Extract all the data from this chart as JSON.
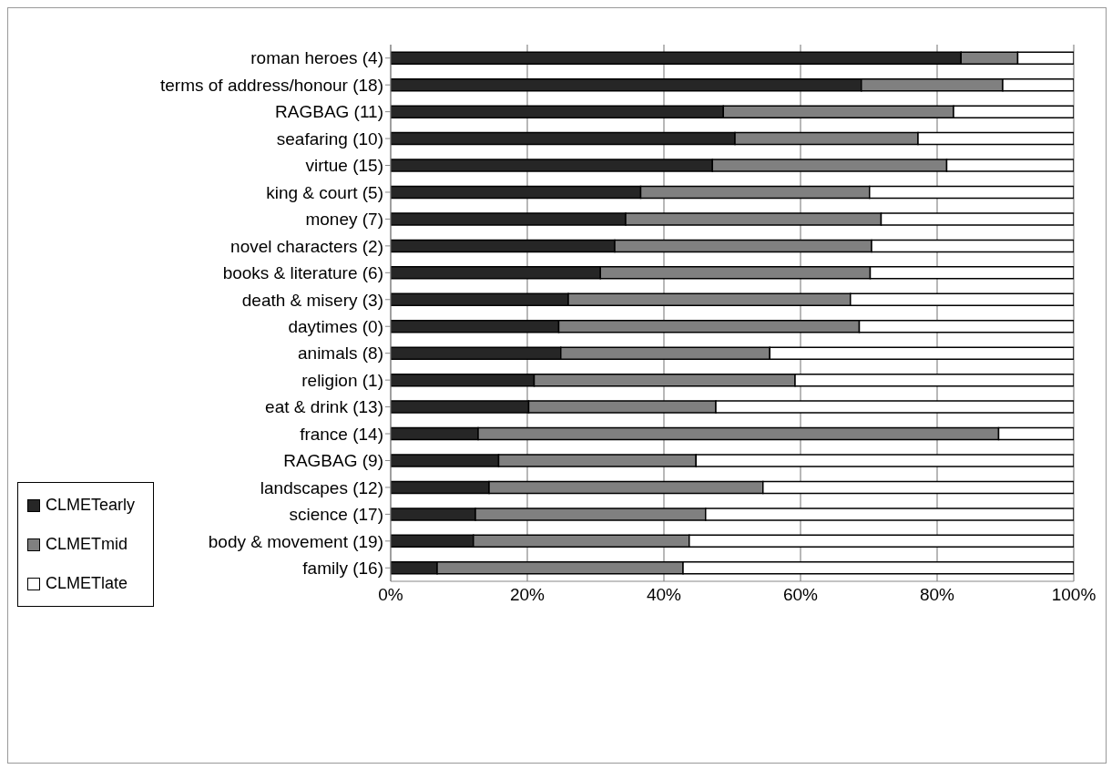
{
  "chart_data": {
    "type": "bar",
    "orientation": "horizontal",
    "stacked": true,
    "categories": [
      "roman heroes (4)",
      "terms of address/honour (18)",
      "RAGBAG (11)",
      "seafaring (10)",
      "virtue (15)",
      "king & court (5)",
      "money (7)",
      "novel characters (2)",
      "books & literature (6)",
      "death & misery (3)",
      "daytimes (0)",
      "animals (8)",
      "religion (1)",
      "eat & drink (13)",
      "france (14)",
      "RAGBAG (9)",
      "landscapes (12)",
      "science (17)",
      "body & movement (19)",
      "family (16)"
    ],
    "series": [
      {
        "name": "CLMETearly",
        "color": "#262626",
        "values": [
          83.5,
          68.9,
          48.7,
          50.4,
          47.1,
          36.6,
          34.4,
          32.8,
          30.7,
          26.0,
          24.6,
          24.9,
          21.0,
          20.2,
          12.8,
          15.8,
          14.4,
          12.4,
          12.1,
          6.8
        ]
      },
      {
        "name": "CLMETmid",
        "color": "#808080",
        "values": [
          8.3,
          20.7,
          33.7,
          26.8,
          34.3,
          33.5,
          37.4,
          37.6,
          39.5,
          41.3,
          44.0,
          30.6,
          38.2,
          27.4,
          76.2,
          28.9,
          40.1,
          33.7,
          31.6,
          36.0
        ]
      },
      {
        "name": "CLMETlate",
        "color": "#ffffff",
        "values": [
          8.2,
          10.4,
          17.6,
          22.8,
          18.6,
          29.9,
          28.2,
          29.6,
          29.8,
          32.7,
          31.4,
          44.5,
          40.8,
          52.4,
          11.0,
          55.3,
          45.5,
          53.9,
          56.3,
          57.2
        ]
      }
    ],
    "xlim": [
      0,
      100
    ],
    "xticks": [
      {
        "value": 0,
        "label": "0%"
      },
      {
        "value": 20,
        "label": "20%"
      },
      {
        "value": 40,
        "label": "40%"
      },
      {
        "value": 60,
        "label": "60%"
      },
      {
        "value": 80,
        "label": "80%"
      },
      {
        "value": 100,
        "label": "100%"
      }
    ],
    "grid": "x",
    "legend": "left"
  }
}
